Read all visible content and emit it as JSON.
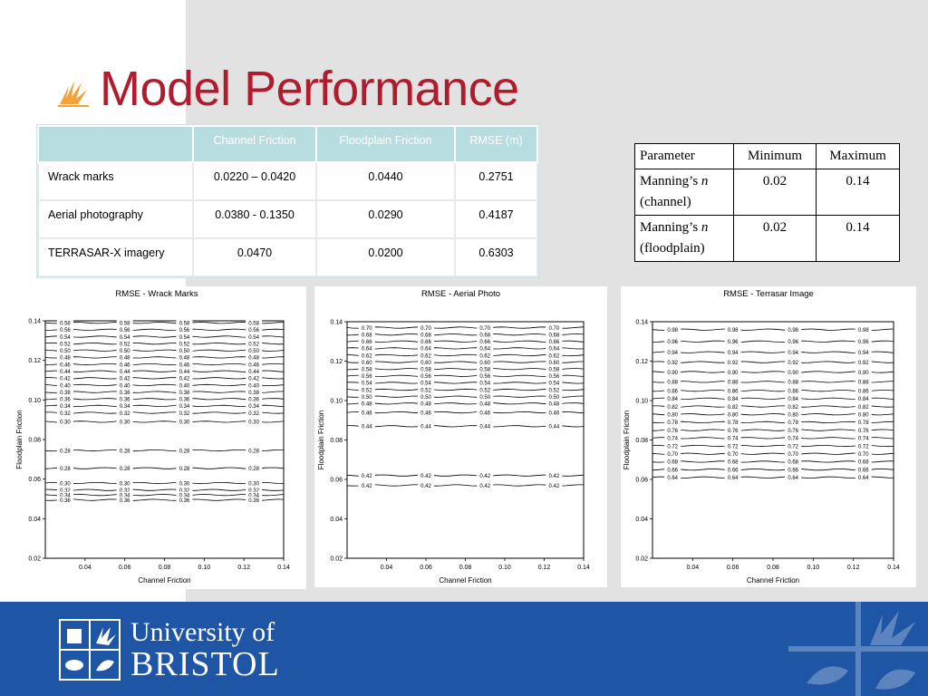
{
  "slide": {
    "title": "Model Performance"
  },
  "friction_table": {
    "headers": [
      "",
      "Channel Friction",
      "Floodplain Friction",
      "RMSE (m)"
    ],
    "rows": [
      [
        "Wrack marks",
        "0.0220 – 0.0420",
        "0.0440",
        "0.2751"
      ],
      [
        "Aerial photography",
        "0.0380 - 0.1350",
        "0.0290",
        "0.4187"
      ],
      [
        "TERRASAR-X imagery",
        "0.0470",
        "0.0200",
        "0.6303"
      ]
    ]
  },
  "param_table": {
    "headers": [
      "Parameter",
      "Minimum",
      "Maximum"
    ],
    "rows": [
      {
        "label_a": "Manning’s ",
        "label_italic": "n",
        "label_b": "(channel)",
        "min": "0.02",
        "max": "0.14"
      },
      {
        "label_a": "Manning’s ",
        "label_italic": "n",
        "label_b": "(floodplain)",
        "min": "0.02",
        "max": "0.14"
      }
    ]
  },
  "chart_data": [
    {
      "type": "contour",
      "title": "RMSE - Wrack Marks",
      "xlabel": "Channel Friction",
      "ylabel": "Floodplain Friction",
      "xlim": [
        0.02,
        0.14
      ],
      "ylim": [
        0.02,
        0.14
      ],
      "xticks": [
        "0.04",
        "0.06",
        "0.08",
        "0.10",
        "0.12",
        "0.14"
      ],
      "yticks": [
        "0.02",
        "0.04",
        "0.06",
        "0.08",
        "0.10",
        "0.12",
        "0.14"
      ],
      "contours": [
        {
          "y": 0.139,
          "label": "0.58"
        },
        {
          "y": 0.1355,
          "label": "0.56"
        },
        {
          "y": 0.132,
          "label": "0.54"
        },
        {
          "y": 0.1285,
          "label": "0.52"
        },
        {
          "y": 0.125,
          "label": "0.50"
        },
        {
          "y": 0.1215,
          "label": "0.48"
        },
        {
          "y": 0.118,
          "label": "0.46"
        },
        {
          "y": 0.1145,
          "label": "0.44"
        },
        {
          "y": 0.111,
          "label": "0.42"
        },
        {
          "y": 0.1075,
          "label": "0.40"
        },
        {
          "y": 0.104,
          "label": "0.38"
        },
        {
          "y": 0.1005,
          "label": "0.36"
        },
        {
          "y": 0.097,
          "label": "0.34"
        },
        {
          "y": 0.0935,
          "label": "0.32"
        },
        {
          "y": 0.089,
          "label": "0.30"
        },
        {
          "y": 0.0745,
          "label": "0.28"
        },
        {
          "y": 0.0655,
          "label": "0.28"
        },
        {
          "y": 0.058,
          "label": "0.30"
        },
        {
          "y": 0.0545,
          "label": "0.32"
        },
        {
          "y": 0.052,
          "label": "0.34"
        },
        {
          "y": 0.0495,
          "label": "0.36"
        }
      ]
    },
    {
      "type": "contour",
      "title": "RMSE - Aerial Photo",
      "xlabel": "Channel Friction",
      "ylabel": "Floodplain Friction",
      "xlim": [
        0.02,
        0.14
      ],
      "ylim": [
        0.02,
        0.14
      ],
      "xticks": [
        "0.04",
        "0.06",
        "0.08",
        "0.10",
        "0.12",
        "0.14"
      ],
      "yticks": [
        "0.02",
        "0.04",
        "0.06",
        "0.08",
        "0.10",
        "0.12",
        "0.14"
      ],
      "contours": [
        {
          "y": 0.137,
          "label": "0.70"
        },
        {
          "y": 0.1335,
          "label": "0.68"
        },
        {
          "y": 0.13,
          "label": "0.66"
        },
        {
          "y": 0.1265,
          "label": "0.64"
        },
        {
          "y": 0.123,
          "label": "0.62"
        },
        {
          "y": 0.1195,
          "label": "0.60"
        },
        {
          "y": 0.116,
          "label": "0.58"
        },
        {
          "y": 0.1125,
          "label": "0.56"
        },
        {
          "y": 0.109,
          "label": "0.54"
        },
        {
          "y": 0.1055,
          "label": "0.52"
        },
        {
          "y": 0.102,
          "label": "0.50"
        },
        {
          "y": 0.0985,
          "label": "0.48"
        },
        {
          "y": 0.094,
          "label": "0.46"
        },
        {
          "y": 0.087,
          "label": "0.44"
        },
        {
          "y": 0.062,
          "label": "0.42"
        },
        {
          "y": 0.057,
          "label": "0.42"
        }
      ]
    },
    {
      "type": "contour",
      "title": "RMSE - Terrasar Image",
      "xlabel": "Channel Friction",
      "ylabel": "Floodplain Friction",
      "xlim": [
        0.02,
        0.14
      ],
      "ylim": [
        0.02,
        0.14
      ],
      "xticks": [
        "0.04",
        "0.06",
        "0.08",
        "0.10",
        "0.12",
        "0.14"
      ],
      "yticks": [
        "0.02",
        "0.04",
        "0.06",
        "0.08",
        "0.10",
        "0.12",
        "0.14"
      ],
      "contours": [
        {
          "y": 0.136,
          "label": "0.98"
        },
        {
          "y": 0.13,
          "label": "0.96"
        },
        {
          "y": 0.1245,
          "label": "0.94"
        },
        {
          "y": 0.1195,
          "label": "0.92"
        },
        {
          "y": 0.1145,
          "label": "0.90"
        },
        {
          "y": 0.1095,
          "label": "0.88"
        },
        {
          "y": 0.105,
          "label": "0.86"
        },
        {
          "y": 0.101,
          "label": "0.84"
        },
        {
          "y": 0.097,
          "label": "0.82"
        },
        {
          "y": 0.093,
          "label": "0.80"
        },
        {
          "y": 0.089,
          "label": "0.78"
        },
        {
          "y": 0.085,
          "label": "0.76"
        },
        {
          "y": 0.081,
          "label": "0.74"
        },
        {
          "y": 0.077,
          "label": "0.72"
        },
        {
          "y": 0.073,
          "label": "0.70"
        },
        {
          "y": 0.069,
          "label": "0.68"
        },
        {
          "y": 0.065,
          "label": "0.66"
        },
        {
          "y": 0.061,
          "label": "0.64"
        }
      ]
    }
  ],
  "footer": {
    "logo_line1": "University of",
    "logo_line2": "BRISTOL"
  }
}
